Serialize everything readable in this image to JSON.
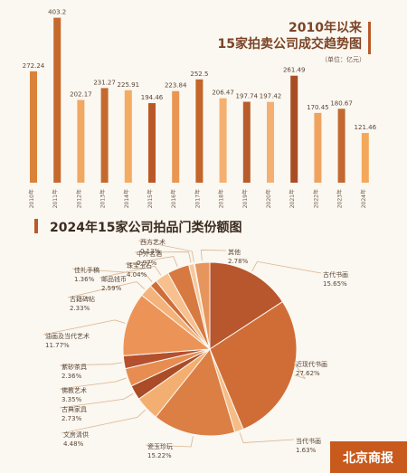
{
  "chart_data": [
    {
      "type": "bar",
      "title": "2010年以来",
      "subtitle": "15家拍卖公司成交趋势图",
      "unit": "（单位：亿元）",
      "categories": [
        "2010年",
        "2011年",
        "2012年",
        "2013年",
        "2014年",
        "2015年",
        "2016年",
        "2017年",
        "2018年",
        "2019年",
        "2020年",
        "2021年",
        "2022年",
        "2023年",
        "2024年"
      ],
      "values": [
        272.24,
        403.2,
        202.17,
        231.27,
        225.91,
        194.46,
        223.84,
        252.5,
        206.47,
        197.74,
        197.42,
        261.49,
        170.45,
        180.67,
        121.46
      ],
      "value_labels": [
        "272.24",
        "403.2",
        "202.17",
        "231.27",
        "225.91",
        "194.46",
        "223.84",
        "252.5",
        "206.47",
        "197.74",
        "197.42",
        "261.49",
        "170.45",
        "180.67",
        "121.46"
      ],
      "ylim": [
        0,
        420
      ],
      "grid": false,
      "colors": [
        "#d9833a",
        "#c56a2c",
        "#f0a863",
        "#c46a2e",
        "#f4ab62",
        "#b95a26",
        "#e99652",
        "#c4652a",
        "#f4b070",
        "#b85c2a",
        "#f3b070",
        "#a94d24",
        "#f0a35f",
        "#c26a31",
        "#f4a85b"
      ]
    },
    {
      "type": "pie",
      "title": "2024年15家公司拍品门类份额图",
      "labels": [
        "古代书画",
        "近现代书画",
        "当代书画",
        "瓷玉珍玩",
        "文房清供",
        "古典家具",
        "佛教艺术",
        "紫砂茶具",
        "油画及当代艺术",
        "古籍碑帖",
        "佳礼手稿",
        "邮品钱币",
        "珠宝玉石",
        "中外名酒",
        "西方艺术",
        "其他"
      ],
      "values": [
        15.65,
        27.62,
        1.63,
        15.22,
        4.48,
        2.73,
        3.35,
        2.36,
        11.77,
        2.33,
        1.36,
        2.59,
        4.04,
        0.97,
        0.13,
        2.78
      ],
      "value_labels": [
        "15.65%",
        "27.62%",
        "1.63%",
        "15.22%",
        "4.48%",
        "2.73%",
        "3.35%",
        "2.36%",
        "11.77%",
        "2.33%",
        "1.36%",
        "2.59%",
        "4.04%",
        "0.97%",
        "0.13%",
        "2.78%"
      ],
      "colors": [
        "#b8562d",
        "#d06d37",
        "#f6bc85",
        "#dc7f45",
        "#f3af72",
        "#a94c27",
        "#e88d51",
        "#b4502e",
        "#ec9458",
        "#f4b37a",
        "#cf6d38",
        "#f7c08e",
        "#d67a42",
        "#f8c79b",
        "#b95631",
        "#e6955c"
      ]
    }
  ],
  "watermark": "北京商报"
}
